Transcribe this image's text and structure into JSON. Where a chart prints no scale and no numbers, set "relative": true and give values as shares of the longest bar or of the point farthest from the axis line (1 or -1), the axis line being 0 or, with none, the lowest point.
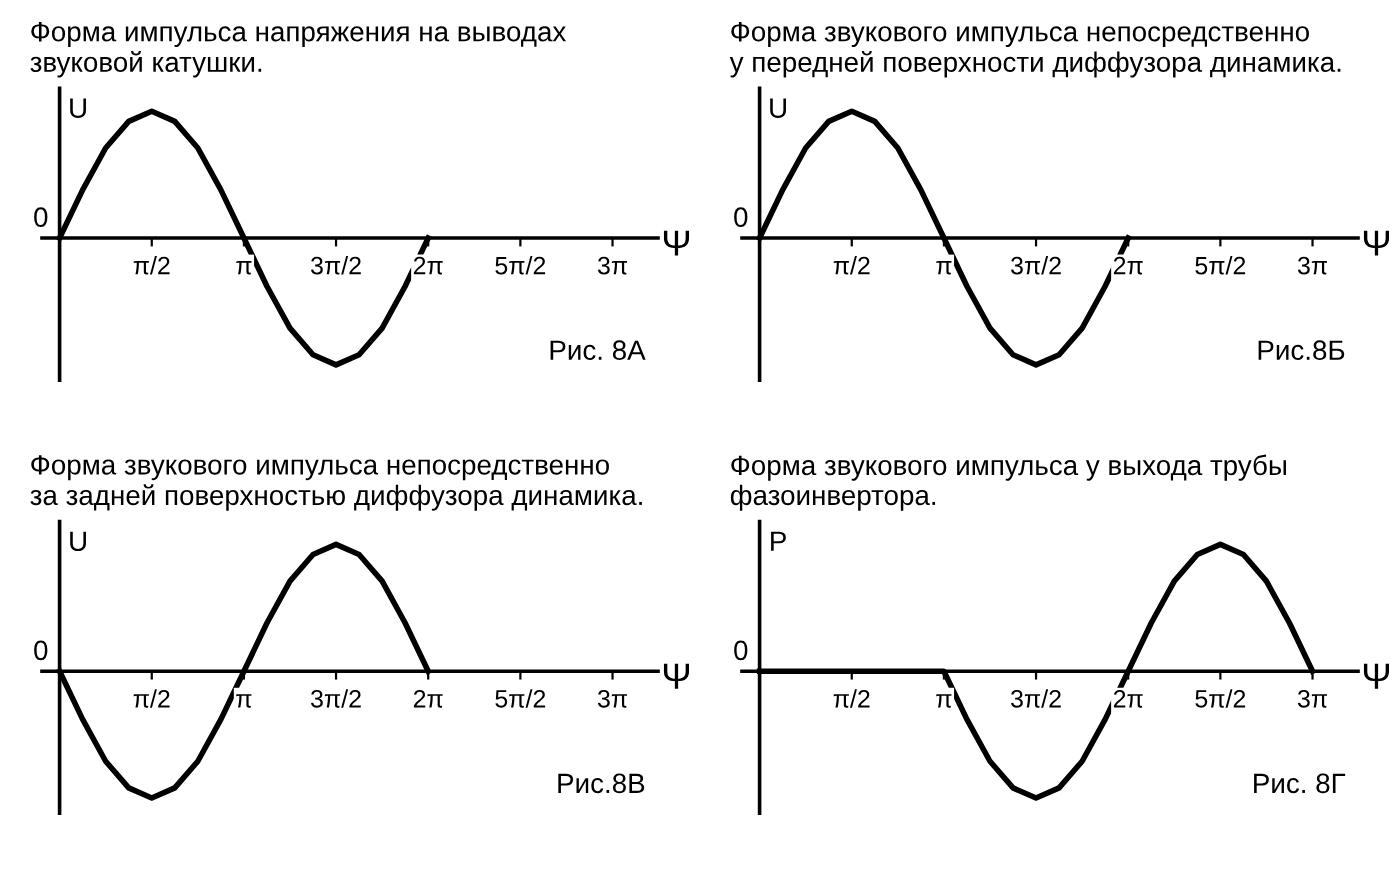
{
  "chart_data": [
    {
      "type": "line",
      "title": "Форма импульса напряжения на выводах\nзвуковой катушки.",
      "xlabel": "Ψ",
      "ylabel": "U",
      "relative": true,
      "annotations": [
        "Рис. 8А",
        "0"
      ],
      "xlim": [
        -0.3,
        10.2
      ],
      "xticks": [
        {
          "value": 1.571,
          "label": "π/2"
        },
        {
          "value": 3.142,
          "label": "π"
        },
        {
          "value": 4.712,
          "label": "3π/2"
        },
        {
          "value": 6.283,
          "label": "2π"
        },
        {
          "value": 7.854,
          "label": "5π/2"
        },
        {
          "value": 9.425,
          "label": "3π"
        }
      ],
      "grid": false,
      "series": [
        {
          "color": "#000000",
          "x": [
            0,
            0.393,
            0.785,
            1.178,
            1.571,
            1.963,
            2.356,
            2.749,
            3.142,
            3.534,
            3.927,
            4.32,
            4.712,
            5.105,
            5.498,
            5.89,
            6.283
          ],
          "values": [
            0,
            0.38,
            0.71,
            0.92,
            1,
            0.92,
            0.71,
            0.38,
            0,
            -0.38,
            -0.71,
            -0.92,
            -1,
            -0.92,
            -0.71,
            -0.38,
            0
          ]
        }
      ]
    },
    {
      "type": "line",
      "title": "Форма звукового импульса непосредственно\nу передней поверхности диффузора динамика.",
      "xlabel": "Ψ",
      "ylabel": "U",
      "relative": true,
      "annotations": [
        "Рис.8Б",
        "0"
      ],
      "xlim": [
        -0.3,
        10.2
      ],
      "xticks": [
        {
          "value": 1.571,
          "label": "π/2"
        },
        {
          "value": 3.142,
          "label": "π"
        },
        {
          "value": 4.712,
          "label": "3π/2"
        },
        {
          "value": 6.283,
          "label": "2π"
        },
        {
          "value": 7.854,
          "label": "5π/2"
        },
        {
          "value": 9.425,
          "label": "3π"
        }
      ],
      "grid": false,
      "series": [
        {
          "color": "#000000",
          "x": [
            0,
            0.393,
            0.785,
            1.178,
            1.571,
            1.963,
            2.356,
            2.749,
            3.142,
            3.534,
            3.927,
            4.32,
            4.712,
            5.105,
            5.498,
            5.89,
            6.283
          ],
          "values": [
            0,
            0.38,
            0.71,
            0.92,
            1,
            0.92,
            0.71,
            0.38,
            0,
            -0.38,
            -0.71,
            -0.92,
            -1,
            -0.92,
            -0.71,
            -0.38,
            0
          ]
        }
      ]
    },
    {
      "type": "line",
      "title": "Форма звукового импульса непосредственно\nза задней поверхностью диффузора динамика.",
      "xlabel": "Ψ",
      "ylabel": "U",
      "relative": true,
      "annotations": [
        "Рис.8В",
        "0"
      ],
      "xlim": [
        -0.3,
        10.2
      ],
      "xticks": [
        {
          "value": 1.571,
          "label": "π/2"
        },
        {
          "value": 3.142,
          "label": "π"
        },
        {
          "value": 4.712,
          "label": "3π/2"
        },
        {
          "value": 6.283,
          "label": "2π"
        },
        {
          "value": 7.854,
          "label": "5π/2"
        },
        {
          "value": 9.425,
          "label": "3π"
        }
      ],
      "grid": false,
      "series": [
        {
          "color": "#000000",
          "x": [
            0,
            0.393,
            0.785,
            1.178,
            1.571,
            1.963,
            2.356,
            2.749,
            3.142,
            3.534,
            3.927,
            4.32,
            4.712,
            5.105,
            5.498,
            5.89,
            6.283
          ],
          "values": [
            0,
            -0.38,
            -0.71,
            -0.92,
            -1,
            -0.92,
            -0.71,
            -0.38,
            0,
            0.38,
            0.71,
            0.92,
            1,
            0.92,
            0.71,
            0.38,
            0
          ]
        }
      ]
    },
    {
      "type": "line",
      "title": "Форма звукового импульса у выхода трубы\nфазоинвертора.",
      "xlabel": "Ψ",
      "ylabel": "P",
      "relative": true,
      "annotations": [
        "Рис. 8Г",
        "0"
      ],
      "xlim": [
        -0.3,
        10.2
      ],
      "xticks": [
        {
          "value": 1.571,
          "label": "π/2"
        },
        {
          "value": 3.142,
          "label": "π"
        },
        {
          "value": 4.712,
          "label": "3π/2"
        },
        {
          "value": 6.283,
          "label": "2π"
        },
        {
          "value": 7.854,
          "label": "5π/2"
        },
        {
          "value": 9.425,
          "label": "3π"
        }
      ],
      "grid": false,
      "series": [
        {
          "color": "#000000",
          "x": [
            0,
            1.571,
            3.142,
            3.534,
            3.927,
            4.32,
            4.712,
            5.105,
            5.498,
            5.89,
            6.283,
            6.676,
            7.069,
            7.461,
            7.854,
            8.247,
            8.639,
            9.032,
            9.425
          ],
          "values": [
            0,
            0,
            0,
            -0.38,
            -0.71,
            -0.92,
            -1,
            -0.92,
            -0.71,
            -0.38,
            0,
            0.38,
            0.71,
            0.92,
            1,
            0.92,
            0.71,
            0.38,
            0
          ]
        }
      ]
    }
  ]
}
